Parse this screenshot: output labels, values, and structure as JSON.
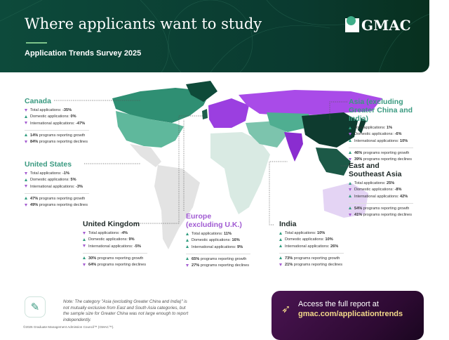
{
  "header": {
    "title": "Where applicants want to study",
    "subtitle": "Application Trends Survey 2025",
    "logo": "GMAC"
  },
  "colors": {
    "header_green": "#0d4a3b",
    "teal": "#3a9a80",
    "purple": "#a05ad2",
    "growth": "#2e9c7e",
    "decline": "#a45bd0",
    "cta_bg": "#3a0e40",
    "cta_link": "#f3d98a"
  },
  "regions": [
    {
      "name": "Canada",
      "total": "-35%",
      "total_dir": "down",
      "domestic": "0%",
      "domestic_dir": "up",
      "international": "-47%",
      "international_dir": "down",
      "growth": "14%",
      "declines": "84%"
    },
    {
      "name": "United States",
      "total": "-1%",
      "total_dir": "down",
      "domestic": "5%",
      "domestic_dir": "up",
      "international": "-3%",
      "international_dir": "down",
      "growth": "47%",
      "declines": "49%"
    },
    {
      "name": "United Kingdom",
      "total": "-4%",
      "total_dir": "down",
      "domestic": "9%",
      "domestic_dir": "up",
      "international": "-5%",
      "international_dir": "down",
      "growth": "30%",
      "declines": "64%"
    },
    {
      "name": "Europe (excluding U.K.)",
      "total": "11%",
      "total_dir": "up",
      "domestic": "16%",
      "domestic_dir": "up",
      "international": "9%",
      "international_dir": "up",
      "growth": "65%",
      "declines": "27%"
    },
    {
      "name": "India",
      "total": "10%",
      "total_dir": "up",
      "domestic": "10%",
      "domestic_dir": "up",
      "international": "26%",
      "international_dir": "up",
      "growth": "73%",
      "declines": "21%"
    },
    {
      "name": "Asia (excluding Greater China and India)",
      "total": "1%",
      "total_dir": "up",
      "domestic": "-6%",
      "domestic_dir": "down",
      "international": "10%",
      "international_dir": "up",
      "growth": "46%",
      "declines": "39%"
    },
    {
      "name": "East and Southeast Asia",
      "total": "25%",
      "total_dir": "up",
      "domestic": "-8%",
      "domestic_dir": "down",
      "international": "42%",
      "international_dir": "up",
      "growth": "54%",
      "declines": "41%"
    }
  ],
  "labels": {
    "total": "Total applications: ",
    "domestic": "Domestic applications: ",
    "international": "International applications: ",
    "growth": " programs reporting growth",
    "declines": " programs reporting declines"
  },
  "note": "Note: The category \"Asia (excluding Greater China and India)\" is not mutually exclusive from East and South Asia categories, but the sample size for Greater China was not large enough to report independently.",
  "copyright": "©2025 Graduate Management Admission Council™ (GMAC™).",
  "cta": {
    "line1": "Access the full report at",
    "link": "gmac.com/applicationtrends"
  }
}
